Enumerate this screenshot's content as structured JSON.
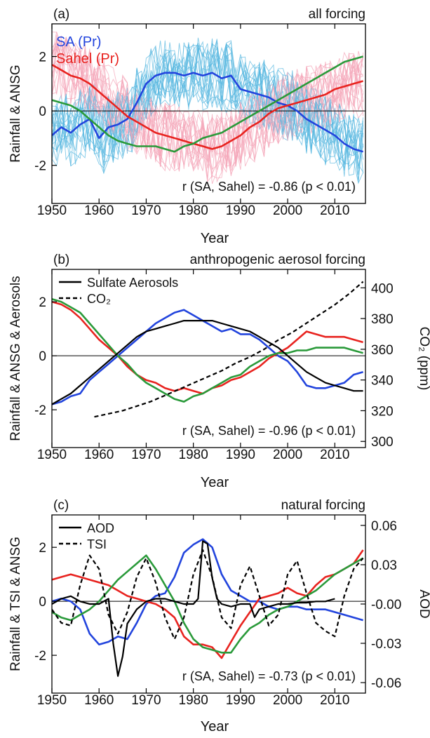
{
  "figure": {
    "xlabel": "Year",
    "xticks": [
      1950,
      1960,
      1970,
      1980,
      1990,
      2000,
      2010
    ],
    "xlim": [
      1950,
      2016.5
    ]
  },
  "colors": {
    "sa": "#2244dd",
    "sahel": "#e8231f",
    "green": "#2a9a3a",
    "black": "#000000",
    "sa_light": "#5ab8e0",
    "sahel_light": "#f4a6b8"
  },
  "chart_data": [
    {
      "id": "a",
      "type": "line",
      "panel_label": "(a)",
      "title": "all forcing",
      "ylabel": "Rainfall & ANSG",
      "ylim": [
        -3.4,
        3.2
      ],
      "yticks": [
        -2,
        0,
        2
      ],
      "legend": [
        "SA (Pr)",
        "Sahel (Pr)"
      ],
      "legend_placement": "top-left",
      "annotation": "r (SA, Sahel) = -0.86 (p < 0.01)",
      "series": [
        {
          "name": "SA (Pr)",
          "color": "#2244dd",
          "x": [
            1950,
            1952,
            1954,
            1956,
            1958,
            1960,
            1962,
            1964,
            1966,
            1968,
            1970,
            1972,
            1974,
            1976,
            1978,
            1980,
            1982,
            1984,
            1986,
            1988,
            1990,
            1992,
            1994,
            1996,
            1998,
            2000,
            2002,
            2004,
            2006,
            2008,
            2010,
            2012,
            2014,
            2016
          ],
          "values": [
            -0.9,
            -0.6,
            -0.8,
            -0.5,
            -0.3,
            -1.0,
            -0.6,
            -0.5,
            -0.3,
            0.3,
            1.0,
            1.3,
            1.4,
            1.4,
            1.3,
            1.4,
            1.3,
            1.4,
            1.2,
            1.3,
            0.8,
            0.7,
            0.6,
            0.5,
            0.3,
            0.2,
            0.0,
            -0.3,
            -0.5,
            -0.7,
            -0.9,
            -1.2,
            -1.4,
            -1.5
          ]
        },
        {
          "name": "Sahel (Pr)",
          "color": "#e8231f",
          "x": [
            1950,
            1952,
            1954,
            1956,
            1958,
            1960,
            1962,
            1964,
            1966,
            1968,
            1970,
            1972,
            1974,
            1976,
            1978,
            1980,
            1982,
            1984,
            1986,
            1988,
            1990,
            1992,
            1994,
            1996,
            1998,
            2000,
            2002,
            2004,
            2006,
            2008,
            2010,
            2012,
            2014,
            2016
          ],
          "values": [
            1.7,
            1.5,
            1.3,
            1.2,
            1.0,
            0.7,
            0.4,
            0.1,
            -0.2,
            -0.4,
            -0.6,
            -0.8,
            -0.9,
            -1.0,
            -1.1,
            -1.2,
            -1.3,
            -1.4,
            -1.3,
            -1.1,
            -0.9,
            -0.6,
            -0.4,
            -0.1,
            0.1,
            0.2,
            0.3,
            0.4,
            0.5,
            0.6,
            0.8,
            0.9,
            1.0,
            1.1
          ]
        },
        {
          "name": "ANSG",
          "color": "#2a9a3a",
          "x": [
            1950,
            1952,
            1954,
            1956,
            1958,
            1960,
            1962,
            1964,
            1966,
            1968,
            1970,
            1972,
            1974,
            1976,
            1978,
            1980,
            1982,
            1984,
            1986,
            1988,
            1990,
            1992,
            1994,
            1996,
            1998,
            2000,
            2002,
            2004,
            2006,
            2008,
            2010,
            2012,
            2014,
            2016
          ],
          "values": [
            0.4,
            0.3,
            0.2,
            0.0,
            -0.3,
            -0.6,
            -0.9,
            -1.1,
            -1.2,
            -1.3,
            -1.3,
            -1.3,
            -1.4,
            -1.5,
            -1.3,
            -1.2,
            -1.0,
            -0.9,
            -0.8,
            -0.6,
            -0.4,
            -0.2,
            0.0,
            0.2,
            0.4,
            0.6,
            0.8,
            1.0,
            1.2,
            1.4,
            1.6,
            1.8,
            1.9,
            2.0
          ]
        }
      ]
    },
    {
      "id": "b",
      "type": "line",
      "panel_label": "(b)",
      "title": "anthropogenic aerosol forcing",
      "ylabel": "Rainfall & ANSG & Aerosols",
      "ylim": [
        -3.4,
        3.2
      ],
      "yticks": [
        -2,
        0,
        2
      ],
      "ylabel_right": "CO₂ (ppm)",
      "ylim_right": [
        296,
        412
      ],
      "yticks_right": [
        300,
        320,
        340,
        360,
        380,
        400
      ],
      "legend": [
        "Sulfate Aerosols",
        "CO₂"
      ],
      "legend_placement": "top-left",
      "annotation": "r (SA, Sahel) = -0.96 (p < 0.01)",
      "series": [
        {
          "name": "SA",
          "color": "#2244dd",
          "x": [
            1950,
            1952,
            1954,
            1956,
            1958,
            1960,
            1962,
            1964,
            1966,
            1968,
            1970,
            1972,
            1974,
            1976,
            1978,
            1980,
            1982,
            1984,
            1986,
            1988,
            1990,
            1992,
            1994,
            1996,
            1998,
            2000,
            2002,
            2004,
            2006,
            2008,
            2010,
            2012,
            2014,
            2016
          ],
          "values": [
            -1.8,
            -1.7,
            -1.5,
            -1.4,
            -0.9,
            -0.6,
            -0.3,
            0.0,
            0.3,
            0.6,
            0.9,
            1.2,
            1.4,
            1.6,
            1.7,
            1.5,
            1.3,
            1.1,
            0.9,
            1.0,
            0.8,
            0.8,
            0.6,
            0.3,
            0.0,
            -0.2,
            -0.6,
            -1.1,
            -1.2,
            -1.2,
            -1.1,
            -1.0,
            -0.7,
            -0.6
          ]
        },
        {
          "name": "Sahel",
          "color": "#e8231f",
          "x": [
            1950,
            1952,
            1954,
            1956,
            1958,
            1960,
            1962,
            1964,
            1966,
            1968,
            1970,
            1972,
            1974,
            1976,
            1978,
            1980,
            1982,
            1984,
            1986,
            1988,
            1990,
            1992,
            1994,
            1996,
            1998,
            2000,
            2002,
            2004,
            2006,
            2008,
            2010,
            2012,
            2014,
            2016
          ],
          "values": [
            2.0,
            1.9,
            1.7,
            1.4,
            1.0,
            0.6,
            0.3,
            0.0,
            -0.4,
            -0.7,
            -0.9,
            -1.0,
            -1.2,
            -1.3,
            -1.2,
            -1.3,
            -1.4,
            -1.2,
            -1.1,
            -0.9,
            -0.8,
            -0.6,
            -0.4,
            -0.1,
            0.1,
            0.3,
            0.6,
            0.9,
            0.8,
            0.7,
            0.7,
            0.7,
            0.6,
            0.5
          ]
        },
        {
          "name": "ANSG",
          "color": "#2a9a3a",
          "x": [
            1950,
            1952,
            1954,
            1956,
            1958,
            1960,
            1962,
            1964,
            1966,
            1968,
            1970,
            1972,
            1974,
            1976,
            1978,
            1980,
            1982,
            1984,
            1986,
            1988,
            1990,
            1992,
            1994,
            1996,
            1998,
            2000,
            2002,
            2004,
            2006,
            2008,
            2010,
            2012,
            2014,
            2016
          ],
          "values": [
            2.1,
            2.0,
            1.8,
            1.6,
            1.2,
            0.8,
            0.4,
            0.0,
            -0.3,
            -0.7,
            -1.0,
            -1.2,
            -1.4,
            -1.6,
            -1.7,
            -1.5,
            -1.4,
            -1.2,
            -1.0,
            -0.8,
            -0.7,
            -0.4,
            -0.2,
            0.0,
            0.1,
            0.1,
            0.2,
            0.2,
            0.3,
            0.3,
            0.3,
            0.3,
            0.2,
            0.1
          ]
        },
        {
          "name": "Sulfate Aerosols",
          "color": "#000000",
          "x": [
            1950,
            1952,
            1954,
            1956,
            1958,
            1960,
            1962,
            1964,
            1966,
            1968,
            1970,
            1972,
            1974,
            1976,
            1978,
            1980,
            1982,
            1984,
            1986,
            1988,
            1990,
            1992,
            1994,
            1996,
            1998,
            2000,
            2002,
            2004,
            2006,
            2008,
            2010,
            2012,
            2014,
            2016
          ],
          "values": [
            -1.8,
            -1.6,
            -1.4,
            -1.1,
            -0.8,
            -0.5,
            -0.2,
            0.1,
            0.4,
            0.7,
            0.9,
            1.0,
            1.1,
            1.2,
            1.3,
            1.3,
            1.3,
            1.3,
            1.2,
            1.1,
            1.0,
            0.9,
            0.7,
            0.5,
            0.3,
            0.0,
            -0.3,
            -0.6,
            -0.8,
            -1.0,
            -1.1,
            -1.2,
            -1.3,
            -1.3
          ]
        },
        {
          "name": "CO₂",
          "color": "#000000",
          "dash": true,
          "axis": "right",
          "x": [
            1959,
            1962,
            1965,
            1968,
            1971,
            1974,
            1977,
            1980,
            1983,
            1986,
            1989,
            1992,
            1995,
            1998,
            2001,
            2004,
            2007,
            2010,
            2013,
            2016
          ],
          "values": [
            316,
            318,
            320,
            323,
            326,
            330,
            334,
            338,
            342,
            346,
            351,
            355,
            360,
            366,
            371,
            377,
            383,
            389,
            396,
            404
          ]
        }
      ]
    },
    {
      "id": "c",
      "type": "line",
      "panel_label": "(c)",
      "title": "natural forcing",
      "ylabel": "Rainfall & TSI & ANSG",
      "ylim": [
        -3.4,
        3.2
      ],
      "yticks": [
        -2,
        0,
        2
      ],
      "ylabel_right": "AOD",
      "ylim_right": [
        -0.068,
        0.068
      ],
      "yticks_right": [
        0.06,
        0.03,
        -0.0,
        -0.03,
        -0.06
      ],
      "ytick_labels_right": [
        "0.06",
        "0.03",
        "-0.00",
        "-0.03",
        "-0.06"
      ],
      "legend": [
        "AOD",
        "TSI"
      ],
      "legend_placement": "top-left",
      "annotation": "r (SA, Sahel) = -0.73 (p < 0.01)",
      "series": [
        {
          "name": "SA",
          "color": "#2244dd",
          "x": [
            1950,
            1952,
            1954,
            1956,
            1958,
            1960,
            1962,
            1964,
            1966,
            1968,
            1970,
            1972,
            1974,
            1976,
            1978,
            1980,
            1982,
            1984,
            1986,
            1988,
            1990,
            1992,
            1994,
            1996,
            1998,
            2000,
            2002,
            2004,
            2006,
            2008,
            2010,
            2012,
            2014,
            2016
          ],
          "values": [
            0.0,
            0.1,
            0.0,
            -0.3,
            -1.2,
            -1.6,
            -1.5,
            -1.3,
            -1.4,
            -0.8,
            -0.1,
            0.2,
            0.3,
            0.9,
            1.8,
            2.1,
            2.3,
            2.0,
            1.0,
            0.4,
            0.2,
            0.0,
            0.0,
            -0.2,
            -0.3,
            -0.2,
            -0.2,
            -0.3,
            -0.3,
            -0.3,
            -0.4,
            -0.5,
            -0.6,
            -0.7
          ]
        },
        {
          "name": "Sahel",
          "color": "#e8231f",
          "x": [
            1950,
            1952,
            1954,
            1956,
            1958,
            1960,
            1962,
            1964,
            1966,
            1968,
            1970,
            1972,
            1974,
            1976,
            1978,
            1980,
            1982,
            1984,
            1986,
            1988,
            1990,
            1992,
            1994,
            1996,
            1998,
            2000,
            2002,
            2004,
            2006,
            2008,
            2010,
            2012,
            2014,
            2016
          ],
          "values": [
            0.8,
            0.9,
            1.0,
            0.9,
            0.8,
            0.7,
            0.6,
            0.4,
            0.2,
            0.1,
            0.0,
            -0.1,
            -0.3,
            -0.6,
            -1.3,
            -1.6,
            -1.6,
            -1.7,
            -2.1,
            -1.5,
            -0.9,
            -0.4,
            0.1,
            0.2,
            0.3,
            0.5,
            0.3,
            0.2,
            0.6,
            0.9,
            1.0,
            1.2,
            1.4,
            1.9
          ]
        },
        {
          "name": "ANSG",
          "color": "#2a9a3a",
          "x": [
            1950,
            1952,
            1954,
            1956,
            1958,
            1960,
            1962,
            1964,
            1966,
            1968,
            1970,
            1972,
            1974,
            1976,
            1978,
            1980,
            1982,
            1984,
            1986,
            1988,
            1990,
            1992,
            1994,
            1996,
            1998,
            2000,
            2002,
            2004,
            2006,
            2008,
            2010,
            2012,
            2014,
            2016
          ],
          "values": [
            -0.4,
            -0.6,
            -0.7,
            -0.5,
            -0.3,
            0.0,
            0.4,
            0.8,
            1.1,
            1.4,
            1.7,
            1.2,
            0.6,
            0.0,
            -0.8,
            -1.4,
            -1.7,
            -1.8,
            -1.9,
            -1.9,
            -1.4,
            -1.0,
            -0.8,
            -0.5,
            -0.3,
            -0.2,
            0.0,
            0.2,
            0.4,
            0.7,
            1.0,
            1.2,
            1.4,
            1.6
          ]
        },
        {
          "name": "AOD",
          "color": "#000000",
          "axis": "right",
          "x": [
            1950,
            1952,
            1954,
            1956,
            1958,
            1960,
            1962,
            1963,
            1964,
            1965,
            1966,
            1968,
            1970,
            1972,
            1974,
            1976,
            1978,
            1980,
            1981,
            1982,
            1983,
            1984,
            1985,
            1986,
            1988,
            1990,
            1991,
            1992,
            1993,
            1994,
            1996,
            1998,
            2000,
            2002,
            2004,
            2006,
            2008,
            2010
          ],
          "values": [
            0.0,
            0.004,
            0.006,
            0.002,
            0.0,
            0.0,
            0.004,
            -0.03,
            -0.055,
            -0.04,
            -0.015,
            -0.004,
            0.002,
            0.004,
            0.004,
            0.002,
            0.0,
            0.0,
            0.004,
            0.048,
            0.046,
            0.02,
            0.004,
            0.0,
            -0.002,
            0.0,
            0.0,
            0.0,
            -0.01,
            -0.004,
            -0.002,
            0.0,
            0.0,
            0.001,
            0.001,
            0.002,
            0.002,
            0.004
          ]
        },
        {
          "name": "TSI",
          "color": "#000000",
          "dash": true,
          "x": [
            1950,
            1952,
            1954,
            1956,
            1958,
            1960,
            1962,
            1964,
            1966,
            1968,
            1970,
            1972,
            1974,
            1976,
            1978,
            1980,
            1982,
            1984,
            1986,
            1988,
            1990,
            1992,
            1994,
            1996,
            1998,
            2000,
            2002,
            2004,
            2006,
            2008,
            2010,
            2012,
            2014,
            2016
          ],
          "values": [
            -0.3,
            -0.8,
            -0.9,
            0.6,
            1.7,
            1.2,
            -0.5,
            -1.2,
            -0.4,
            0.9,
            1.6,
            0.7,
            -0.6,
            -1.4,
            -0.6,
            1.0,
            1.9,
            0.9,
            -0.6,
            -1.0,
            0.6,
            1.3,
            0.2,
            -0.9,
            -0.5,
            1.0,
            1.5,
            0.3,
            -0.8,
            -1.1,
            -1.3,
            0.2,
            1.2,
            1.6
          ]
        }
      ]
    }
  ]
}
